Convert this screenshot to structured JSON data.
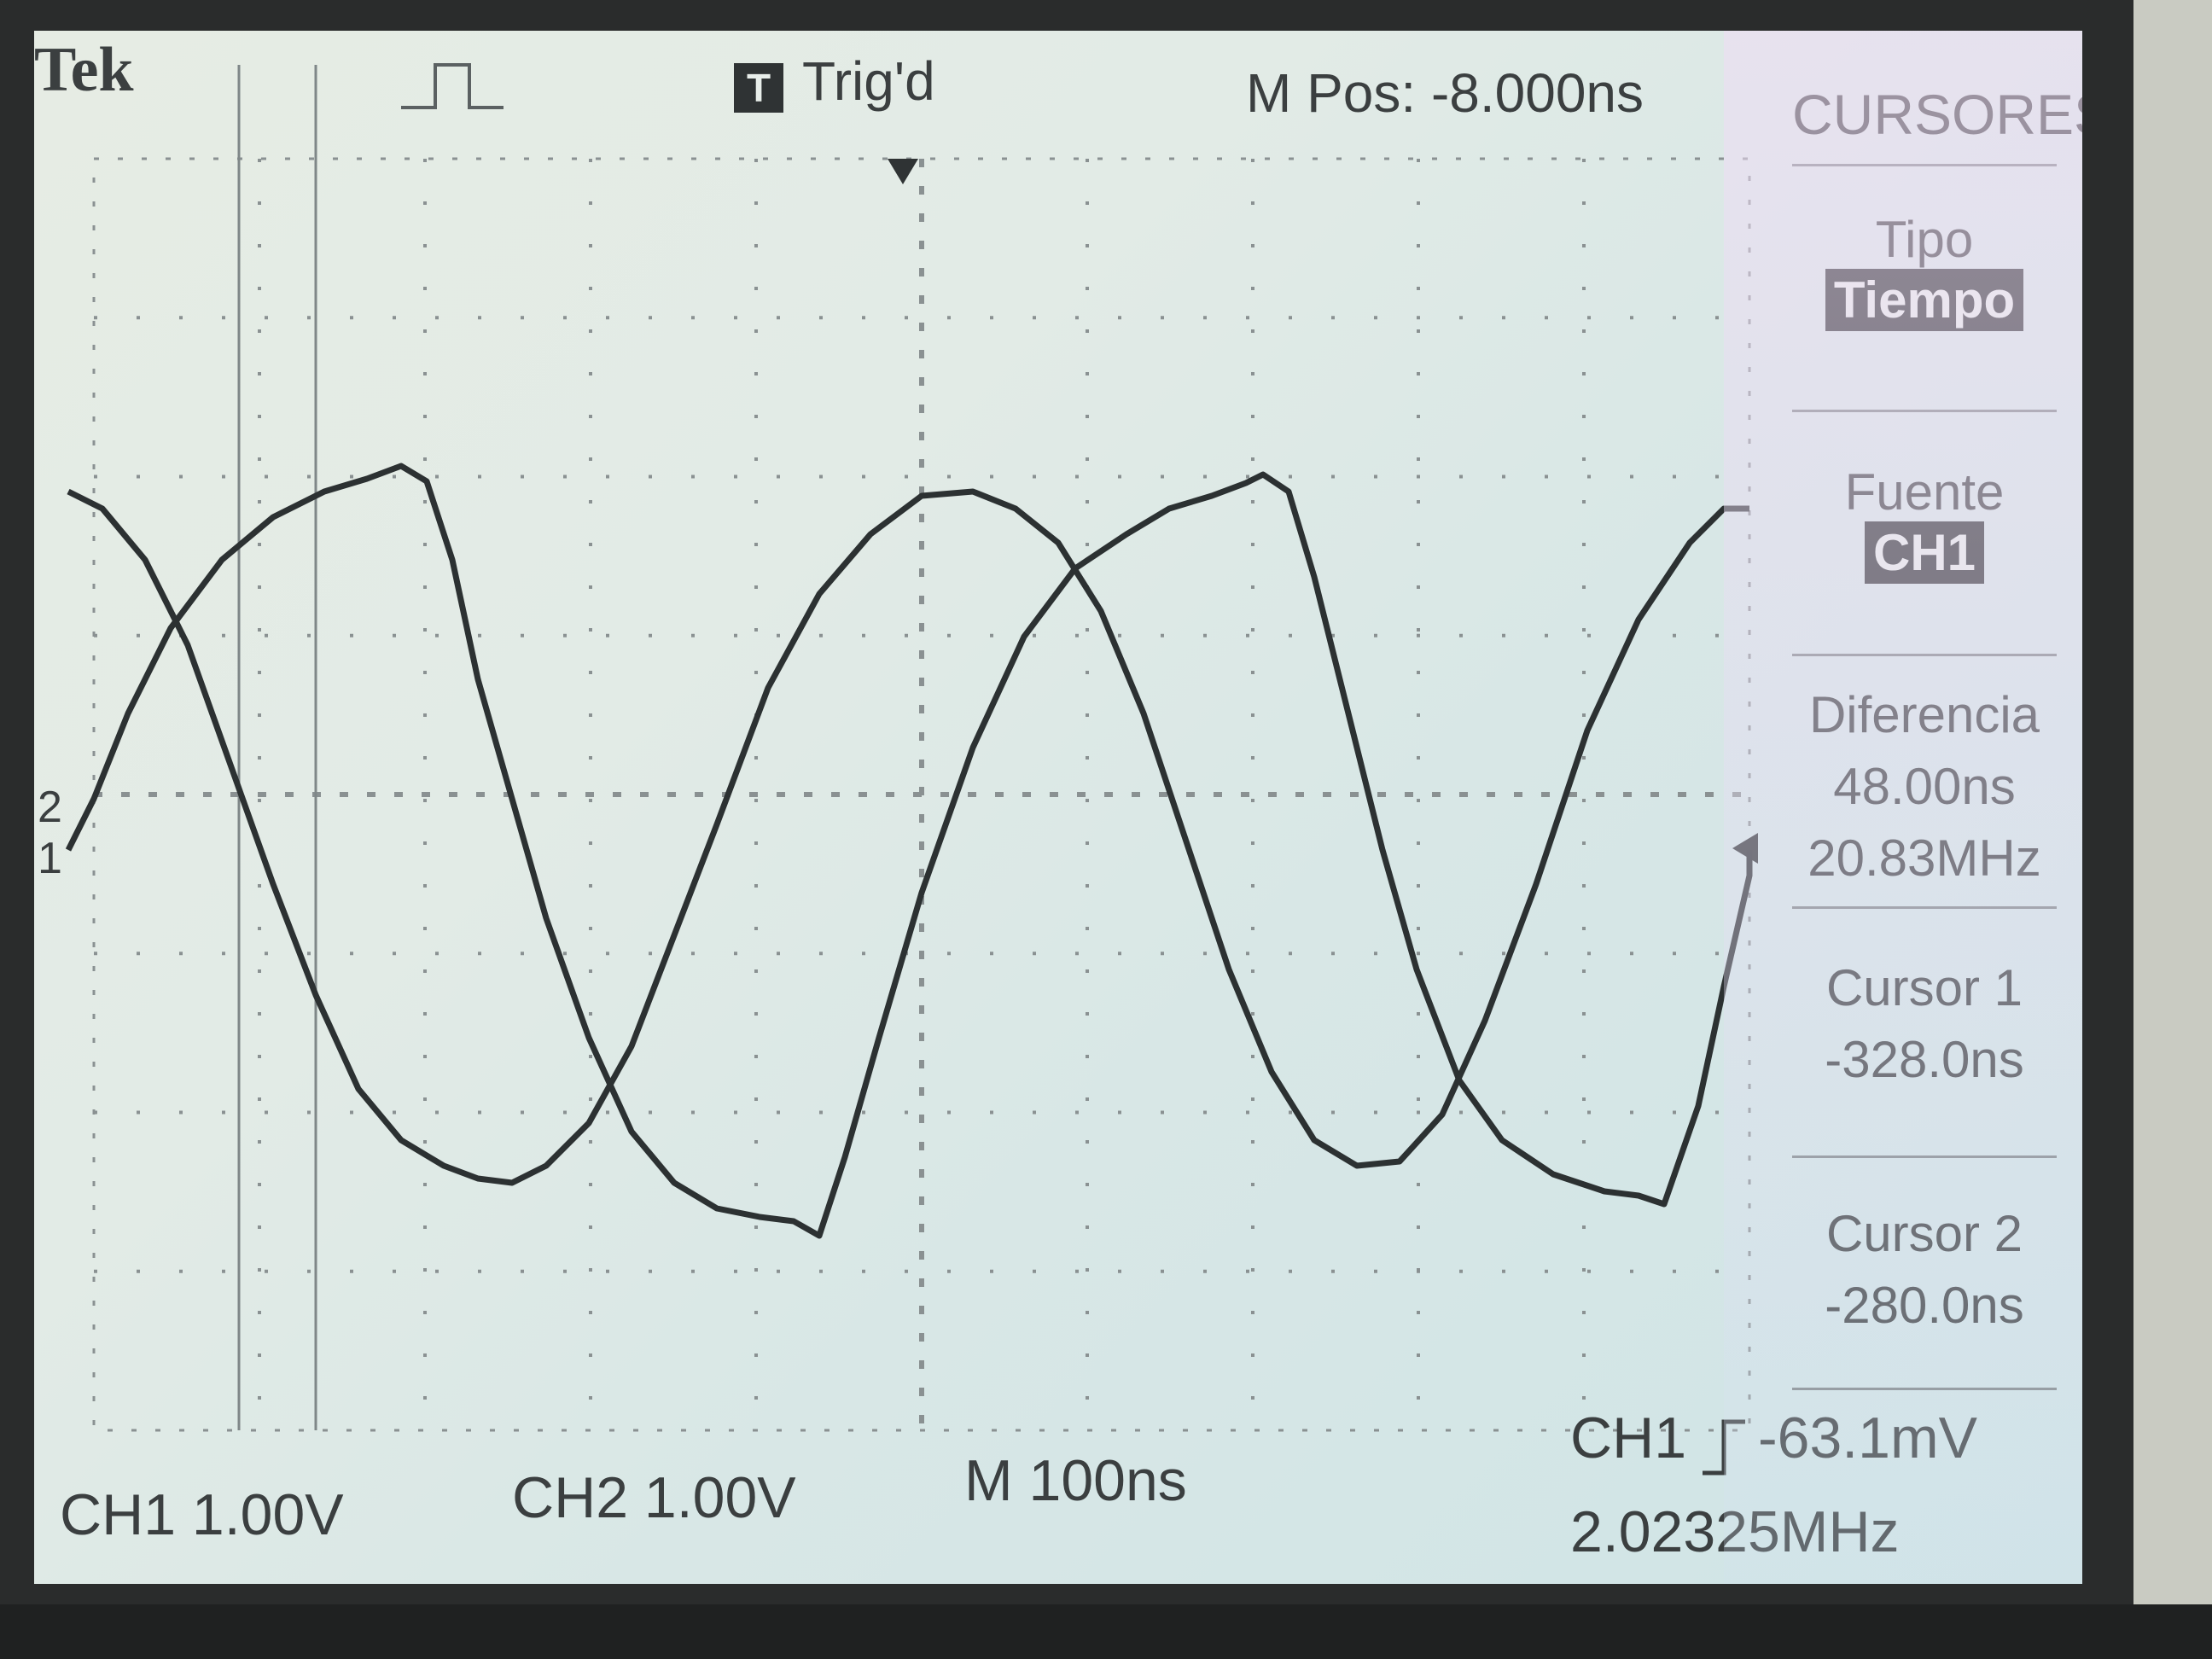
{
  "header": {
    "brand": "Tek",
    "trigger_badge": "T",
    "trigger_status": "Trig'd",
    "position_readout": "M Pos: -8.000ns"
  },
  "menu": {
    "title": "CURSORES",
    "items": [
      {
        "label": "Tipo",
        "value": "Tiempo",
        "highlighted": true
      },
      {
        "label": "Fuente",
        "value": "CH1",
        "highlighted": true
      },
      {
        "label": "Diferencia",
        "values": [
          "48.00ns",
          "20.83MHz"
        ]
      },
      {
        "label": "Cursor 1",
        "values": [
          "-328.0ns"
        ]
      },
      {
        "label": "Cursor 2",
        "values": [
          "-280.0ns"
        ]
      }
    ]
  },
  "markers": {
    "ch2_marker": "2",
    "ch1_marker": "1"
  },
  "footer": {
    "ch1_scale": "CH1  1.00V",
    "ch2_scale": "CH2  1.00V",
    "timebase": "M 100ns",
    "trigger_source": "CH1",
    "trigger_level": "-63.1mV",
    "frequency": "2.02325MHz"
  },
  "colors": {
    "trace": "#2c3132",
    "grid": "#8a9192",
    "text": "#3b3f40"
  },
  "icons": {
    "trigger_slope": "rising-edge-icon",
    "trigger_position": "down-arrow-icon",
    "trigger_level": "left-arrow-icon",
    "acquisition": "pulse-icon"
  }
}
